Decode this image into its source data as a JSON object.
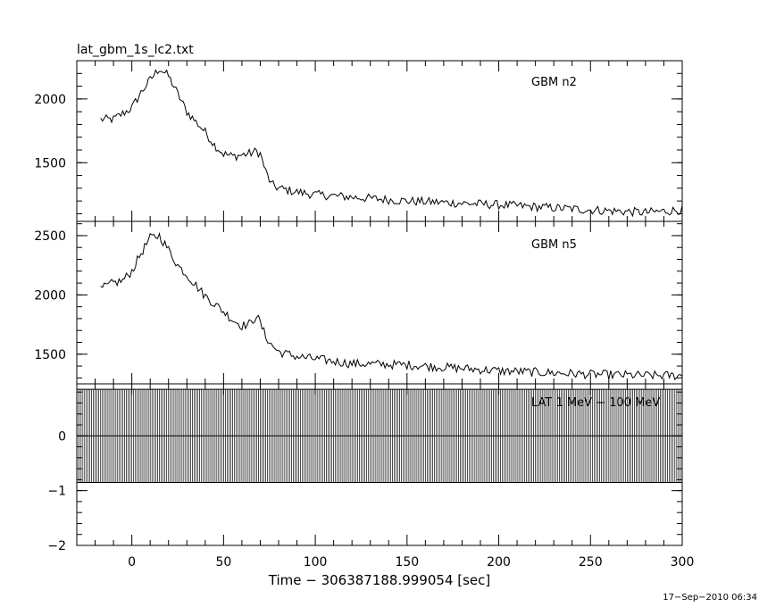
{
  "title": "lat_gbm_1s_lc2.txt",
  "xlabel": "Time − 306387188.999054 [sec]",
  "timestamp": "17−Sep−2010 06:34",
  "chart_data": [
    {
      "type": "line",
      "annotation": "GBM n2",
      "xlim": [
        -30,
        300
      ],
      "ylim": [
        1040,
        2300
      ],
      "yticks": [
        1500,
        2000
      ],
      "ytick_labels": [
        "1500",
        "2000"
      ],
      "grid": false,
      "series": [
        {
          "x": [
            -17,
            -10,
            0,
            5,
            10,
            15,
            20,
            25,
            30,
            35,
            40,
            45,
            50,
            55,
            60,
            65,
            68,
            70,
            73,
            76,
            80,
            90,
            100,
            120,
            150,
            200,
            250,
            280,
            300
          ],
          "values": [
            1840,
            1840,
            1930,
            2050,
            2150,
            2240,
            2180,
            2040,
            1900,
            1820,
            1740,
            1640,
            1570,
            1550,
            1560,
            1575,
            1590,
            1570,
            1430,
            1330,
            1300,
            1270,
            1250,
            1230,
            1200,
            1170,
            1130,
            1110,
            1130
          ]
        }
      ]
    },
    {
      "type": "line",
      "annotation": "GBM n5",
      "xlim": [
        -30,
        300
      ],
      "ylim": [
        1250,
        2620
      ],
      "yticks": [
        1500,
        2000,
        2500
      ],
      "ytick_labels": [
        "1500",
        "2000",
        "2500"
      ],
      "grid": false,
      "series": [
        {
          "x": [
            -17,
            -10,
            -5,
            0,
            5,
            10,
            15,
            20,
            25,
            30,
            40,
            50,
            55,
            60,
            65,
            68,
            70,
            73,
            76,
            80,
            90,
            100,
            120,
            150,
            200,
            250,
            280,
            300
          ],
          "values": [
            2050,
            2100,
            2120,
            2200,
            2350,
            2480,
            2500,
            2380,
            2250,
            2170,
            1990,
            1860,
            1790,
            1740,
            1760,
            1830,
            1760,
            1650,
            1580,
            1520,
            1480,
            1460,
            1420,
            1410,
            1360,
            1330,
            1320,
            1320
          ]
        }
      ]
    },
    {
      "type": "bar",
      "annotation": "LAT 1 MeV − 100 MeV",
      "xlim": [
        -30,
        300
      ],
      "ylim": [
        -2,
        0.95
      ],
      "yticks": [
        -2,
        -1,
        0
      ],
      "ytick_labels": [
        "−2",
        "−1",
        "0"
      ],
      "grid": false,
      "bin_width_sec": 1,
      "values_all_bins": 0,
      "error_bar": [
        -0.85,
        0.85
      ],
      "x_range": [
        -30,
        300
      ]
    }
  ],
  "xticks": [
    0,
    50,
    100,
    150,
    200,
    250,
    300
  ],
  "xtick_labels": [
    "0",
    "50",
    "100",
    "150",
    "200",
    "250",
    "300"
  ]
}
